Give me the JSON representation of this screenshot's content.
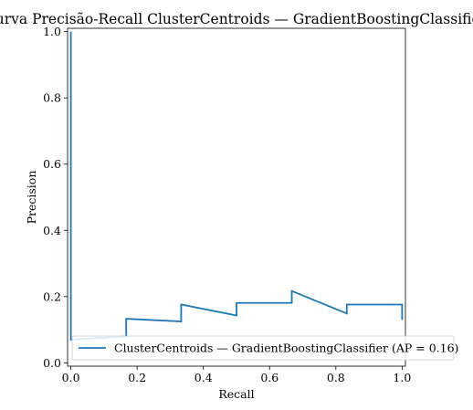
{
  "chart_data": {
    "type": "line",
    "title": "Curva Precisão-Recall ClusterCentroids — GradientBoostingClassifier",
    "xlabel": "Recall",
    "ylabel": "Precision",
    "xlim": [
      -0.01,
      1.01
    ],
    "ylim": [
      -0.01,
      1.01
    ],
    "xticks": [
      {
        "value": 0.0,
        "label": "0.0"
      },
      {
        "value": 0.2,
        "label": "0.2"
      },
      {
        "value": 0.4,
        "label": "0.4"
      },
      {
        "value": 0.6,
        "label": "0.6"
      },
      {
        "value": 0.8,
        "label": "0.8"
      },
      {
        "value": 1.0,
        "label": "1.0"
      }
    ],
    "yticks": [
      {
        "value": 0.0,
        "label": "0.0"
      },
      {
        "value": 0.2,
        "label": "0.2"
      },
      {
        "value": 0.4,
        "label": "0.4"
      },
      {
        "value": 0.6,
        "label": "0.6"
      },
      {
        "value": 0.8,
        "label": "0.8"
      },
      {
        "value": 1.0,
        "label": "1.0"
      }
    ],
    "grid": false,
    "legend_position": "lower-right",
    "series": [
      {
        "name": "ClusterCentroids — GradientBoostingClassifier (AP = 0.16)",
        "color": "#1f77b4",
        "drawstyle": "steps-post",
        "x": [
          1.0,
          1.0,
          0.833,
          0.833,
          0.667,
          0.667,
          0.5,
          0.5,
          0.333,
          0.333,
          0.167,
          0.167,
          0.0,
          0.0
        ],
        "y": [
          0.13,
          0.176,
          0.176,
          0.149,
          0.217,
          0.181,
          0.181,
          0.143,
          0.176,
          0.125,
          0.133,
          0.08,
          0.07,
          1.0
        ]
      }
    ]
  }
}
